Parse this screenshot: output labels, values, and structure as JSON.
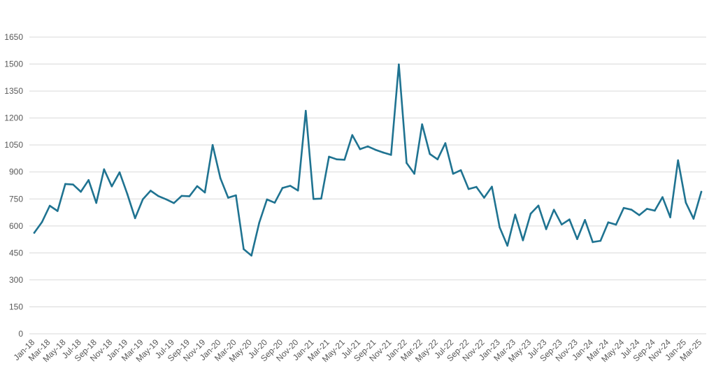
{
  "chart_data": {
    "type": "line",
    "title": "",
    "xlabel": "",
    "ylabel": "",
    "ylim": [
      0,
      1650
    ],
    "y_ticks": [
      "0",
      "150",
      "300",
      "450",
      "600",
      "750",
      "900",
      "1050",
      "1200",
      "1350",
      "1500",
      "1650"
    ],
    "grid": "horizontal",
    "legend": "none",
    "colors": {
      "line": "#1f7391",
      "grid": "#d9d9d9",
      "text": "#595959"
    },
    "x_tick_labels": [
      "Jan-18",
      "Mar-18",
      "May-18",
      "Jul-18",
      "Sep-18",
      "Nov-18",
      "Jan-19",
      "Mar-19",
      "May-19",
      "Jul-19",
      "Sep-19",
      "Nov-19",
      "Jan-20",
      "Mar-20",
      "May-20",
      "Jul-20",
      "Sep-20",
      "Nov-20",
      "Jan-21",
      "Mar-21",
      "May-21",
      "Jul-21",
      "Sep-21",
      "Nov-21",
      "Jan-22",
      "Mar-22",
      "May-22",
      "Jul-22",
      "Sep-22",
      "Nov-22",
      "Jan-23",
      "Mar-23",
      "May-23",
      "Jul-23",
      "Sep-23",
      "Nov-23",
      "Jan-24",
      "Mar-24",
      "May-24",
      "Jul-24",
      "Sep-24",
      "Nov-24",
      "Jan-25",
      "Mar-25"
    ],
    "x": [
      "Jan-18",
      "Feb-18",
      "Mar-18",
      "Apr-18",
      "May-18",
      "Jun-18",
      "Jul-18",
      "Aug-18",
      "Sep-18",
      "Oct-18",
      "Nov-18",
      "Dec-18",
      "Jan-19",
      "Feb-19",
      "Mar-19",
      "Apr-19",
      "May-19",
      "Jun-19",
      "Jul-19",
      "Aug-19",
      "Sep-19",
      "Oct-19",
      "Nov-19",
      "Dec-19",
      "Jan-20",
      "Feb-20",
      "Mar-20",
      "Apr-20",
      "May-20",
      "Jun-20",
      "Jul-20",
      "Aug-20",
      "Sep-20",
      "Oct-20",
      "Nov-20",
      "Dec-20",
      "Jan-21",
      "Feb-21",
      "Mar-21",
      "Apr-21",
      "May-21",
      "Jun-21",
      "Jul-21",
      "Aug-21",
      "Sep-21",
      "Oct-21",
      "Nov-21",
      "Dec-21",
      "Jan-22",
      "Feb-22",
      "Mar-22",
      "Apr-22",
      "May-22",
      "Jun-22",
      "Jul-22",
      "Aug-22",
      "Sep-22",
      "Oct-22",
      "Nov-22",
      "Dec-22",
      "Jan-23",
      "Feb-23",
      "Mar-23",
      "Apr-23",
      "May-23",
      "Jun-23",
      "Jul-23",
      "Aug-23",
      "Sep-23",
      "Oct-23",
      "Nov-23",
      "Dec-23",
      "Jan-24",
      "Feb-24",
      "Mar-24",
      "Apr-24",
      "May-24",
      "Jun-24",
      "Jul-24",
      "Aug-24",
      "Sep-24",
      "Oct-24",
      "Nov-24",
      "Dec-24",
      "Jan-25",
      "Feb-25",
      "Mar-25"
    ],
    "series": [
      {
        "values": [
          562,
          622,
          712,
          683,
          833,
          830,
          790,
          855,
          728,
          915,
          820,
          898,
          777,
          643,
          748,
          796,
          766,
          748,
          727,
          767,
          765,
          821,
          786,
          1050,
          865,
          757,
          770,
          471,
          435,
          617,
          747,
          729,
          811,
          823,
          797,
          1240,
          750,
          752,
          985,
          970,
          968,
          1105,
          1027,
          1042,
          1023,
          1008,
          995,
          1498,
          950,
          890,
          1165,
          1000,
          970,
          1060,
          890,
          910,
          805,
          817,
          757,
          818,
          592,
          490,
          663,
          520,
          668,
          713,
          582,
          690,
          608,
          636,
          527,
          633,
          510,
          517,
          620,
          607,
          700,
          690,
          660,
          695,
          685,
          760,
          648,
          965,
          730,
          640,
          790
        ]
      }
    ]
  }
}
